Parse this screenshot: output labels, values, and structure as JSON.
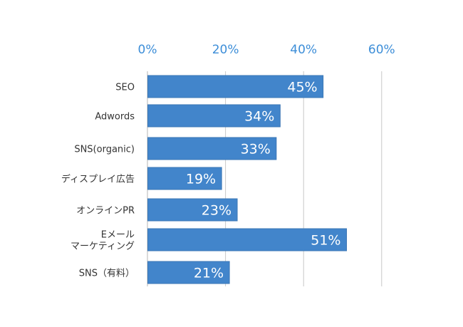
{
  "chart_data": {
    "type": "bar",
    "orientation": "horizontal",
    "categories": [
      [
        "SEO"
      ],
      [
        "Adwords"
      ],
      [
        "SNS(organic)"
      ],
      [
        "ディスプレイ広告"
      ],
      [
        "オンラインPR"
      ],
      [
        "Eメール",
        "マーケティング"
      ],
      [
        "SNS（有料）"
      ]
    ],
    "values": [
      45,
      34,
      33,
      19,
      23,
      51,
      21
    ],
    "data_labels": [
      "45%",
      "34%",
      "33%",
      "19%",
      "23%",
      "51%",
      "21%"
    ],
    "xaxis": {
      "position": "top",
      "ticks": [
        0,
        20,
        40,
        60
      ],
      "tick_labels": [
        "0%",
        "20%",
        "40%",
        "60%"
      ]
    },
    "xlim": [
      0,
      60
    ],
    "grid": true,
    "legend": "none",
    "title": "",
    "xlabel": "",
    "ylabel": ""
  },
  "colors": {
    "bar": "#4285cb",
    "bar_edge": "#3a76b5",
    "tick_label": "#3d8ed8",
    "category_label": "#333333",
    "gridline": "#c8c8c8",
    "axis_line": "#b4b4b4",
    "data_label": "#ffffff"
  }
}
